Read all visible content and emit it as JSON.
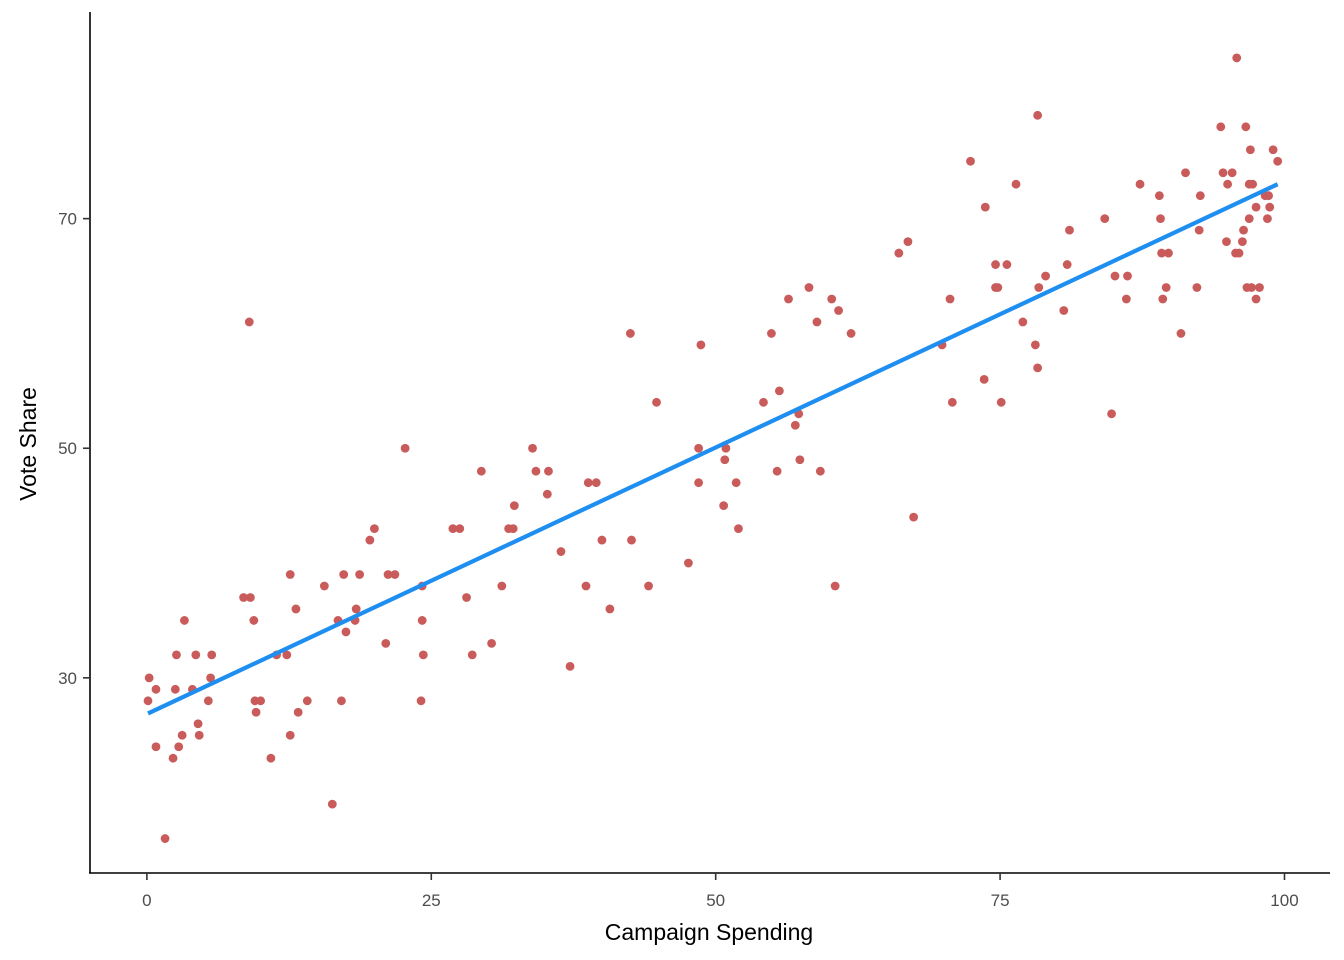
{
  "chart_data": {
    "type": "scatter",
    "title": "",
    "xlabel": "Campaign Spending",
    "ylabel": "Vote Share",
    "xlim": [
      -5,
      104
    ],
    "ylim": [
      13,
      88
    ],
    "x_ticks": [
      0,
      25,
      50,
      75,
      100
    ],
    "x_tick_labels": [
      "0",
      "25",
      "50",
      "75",
      "100"
    ],
    "y_ticks": [
      30,
      50,
      70
    ],
    "y_tick_labels": [
      "30",
      "50",
      "70"
    ],
    "grid": false,
    "legend": "none",
    "point_color": "#c95b5b",
    "line_color": "#1e8ff0",
    "series": [
      {
        "type": "scatter",
        "points": [
          [
            0.1,
            28
          ],
          [
            0.2,
            30
          ],
          [
            0.8,
            24
          ],
          [
            0.8,
            29
          ],
          [
            1.6,
            16
          ],
          [
            2.3,
            23
          ],
          [
            2.5,
            29
          ],
          [
            2.6,
            32
          ],
          [
            2.8,
            24
          ],
          [
            3.1,
            25
          ],
          [
            3.3,
            35
          ],
          [
            4,
            29
          ],
          [
            4.3,
            32
          ],
          [
            4.5,
            26
          ],
          [
            4.6,
            25
          ],
          [
            5.4,
            28
          ],
          [
            5.6,
            30
          ],
          [
            5.7,
            32
          ],
          [
            8.5,
            37
          ],
          [
            9,
            61
          ],
          [
            9.1,
            37
          ],
          [
            9.4,
            35
          ],
          [
            9.5,
            28
          ],
          [
            9.6,
            27
          ],
          [
            10,
            28
          ],
          [
            10.9,
            23
          ],
          [
            11.4,
            32
          ],
          [
            12.3,
            32
          ],
          [
            12.6,
            25
          ],
          [
            12.6,
            39
          ],
          [
            13.1,
            36
          ],
          [
            13.3,
            27
          ],
          [
            14.1,
            28
          ],
          [
            15.6,
            38
          ],
          [
            16.3,
            19
          ],
          [
            16.8,
            35
          ],
          [
            17.1,
            28
          ],
          [
            17.3,
            39
          ],
          [
            17.5,
            34
          ],
          [
            18.3,
            35
          ],
          [
            18.4,
            36
          ],
          [
            18.7,
            39
          ],
          [
            19.6,
            42
          ],
          [
            20,
            43
          ],
          [
            21,
            33
          ],
          [
            21.2,
            39
          ],
          [
            21.8,
            39
          ],
          [
            22.7,
            50
          ],
          [
            24.1,
            28
          ],
          [
            24.2,
            38
          ],
          [
            24.2,
            35
          ],
          [
            24.3,
            32
          ],
          [
            26.9,
            43
          ],
          [
            27.5,
            43
          ],
          [
            28.1,
            37
          ],
          [
            28.6,
            32
          ],
          [
            29.4,
            48
          ],
          [
            30.3,
            33
          ],
          [
            31.2,
            38
          ],
          [
            31.8,
            43
          ],
          [
            32.2,
            43
          ],
          [
            32.3,
            45
          ],
          [
            33.9,
            50
          ],
          [
            34.2,
            48
          ],
          [
            35.2,
            46
          ],
          [
            35.3,
            48
          ],
          [
            36.4,
            41
          ],
          [
            37.2,
            31
          ],
          [
            38.6,
            38
          ],
          [
            38.8,
            47
          ],
          [
            39.5,
            47
          ],
          [
            40,
            42
          ],
          [
            40.7,
            36
          ],
          [
            42.5,
            60
          ],
          [
            42.6,
            42
          ],
          [
            44.1,
            38
          ],
          [
            44.8,
            54
          ],
          [
            47.6,
            40
          ],
          [
            48.5,
            47
          ],
          [
            48.5,
            50
          ],
          [
            48.7,
            59
          ],
          [
            50.7,
            45
          ],
          [
            50.8,
            49
          ],
          [
            50.9,
            50
          ],
          [
            51.8,
            47
          ],
          [
            52,
            43
          ],
          [
            54.2,
            54
          ],
          [
            54.9,
            60
          ],
          [
            55.4,
            48
          ],
          [
            55.6,
            55
          ],
          [
            56.4,
            63
          ],
          [
            57,
            52
          ],
          [
            57.3,
            53
          ],
          [
            57.4,
            49
          ],
          [
            58.2,
            64
          ],
          [
            58.9,
            61
          ],
          [
            59.2,
            48
          ],
          [
            60.2,
            63
          ],
          [
            60.5,
            38
          ],
          [
            60.8,
            62
          ],
          [
            61.9,
            60
          ],
          [
            66.1,
            67
          ],
          [
            66.9,
            68
          ],
          [
            67.4,
            44
          ],
          [
            69.9,
            59
          ],
          [
            70.6,
            63
          ],
          [
            70.8,
            54
          ],
          [
            72.4,
            75
          ],
          [
            73.6,
            56
          ],
          [
            73.7,
            71
          ],
          [
            74.6,
            64
          ],
          [
            74.6,
            66
          ],
          [
            74.8,
            64
          ],
          [
            75.1,
            54
          ],
          [
            75.6,
            66
          ],
          [
            76.4,
            73
          ],
          [
            77,
            61
          ],
          [
            78.1,
            59
          ],
          [
            78.3,
            57
          ],
          [
            78.3,
            79
          ],
          [
            78.4,
            64
          ],
          [
            79,
            65
          ],
          [
            80.6,
            62
          ],
          [
            80.9,
            66
          ],
          [
            81.1,
            69
          ],
          [
            84.2,
            70
          ],
          [
            84.8,
            53
          ],
          [
            85.1,
            65
          ],
          [
            86.1,
            63
          ],
          [
            86.2,
            65
          ],
          [
            87.3,
            73
          ],
          [
            89,
            72
          ],
          [
            89.1,
            70
          ],
          [
            89.2,
            67
          ],
          [
            89.3,
            63
          ],
          [
            89.6,
            64
          ],
          [
            89.8,
            67
          ],
          [
            90.9,
            60
          ],
          [
            91.3,
            74
          ],
          [
            92.3,
            64
          ],
          [
            92.5,
            69
          ],
          [
            92.6,
            72
          ],
          [
            94.4,
            78
          ],
          [
            94.6,
            74
          ],
          [
            94.9,
            68
          ],
          [
            95,
            73
          ],
          [
            95.4,
            74
          ],
          [
            95.7,
            67
          ],
          [
            95.8,
            84
          ],
          [
            96,
            67
          ],
          [
            96.3,
            68
          ],
          [
            96.4,
            69
          ],
          [
            96.6,
            78
          ],
          [
            96.7,
            64
          ],
          [
            96.9,
            70
          ],
          [
            96.9,
            73
          ],
          [
            97,
            76
          ],
          [
            97.1,
            64
          ],
          [
            97.2,
            73
          ],
          [
            97.5,
            63
          ],
          [
            97.5,
            71
          ],
          [
            97.8,
            64
          ],
          [
            98.3,
            72
          ],
          [
            98.5,
            70
          ],
          [
            98.6,
            72
          ],
          [
            98.7,
            71
          ],
          [
            99,
            76
          ],
          [
            99.4,
            75
          ]
        ]
      },
      {
        "type": "line",
        "name": "",
        "x": [
          0.1,
          99.4
        ],
        "y": [
          26.9,
          73.0
        ]
      }
    ]
  }
}
